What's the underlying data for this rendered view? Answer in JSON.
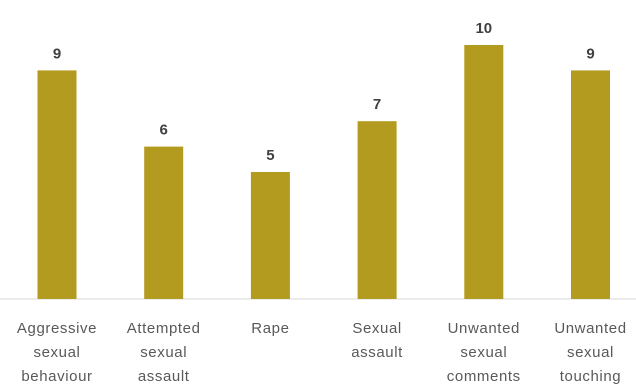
{
  "chart_data": {
    "type": "bar",
    "title": "",
    "xlabel": "",
    "ylabel": "",
    "categories": [
      [
        "Aggressive",
        "sexual",
        "behaviour"
      ],
      [
        "Attempted",
        "sexual",
        "assault"
      ],
      [
        "Rape"
      ],
      [
        "Sexual",
        "assault"
      ],
      [
        "Unwanted",
        "sexual",
        "comments"
      ],
      [
        "Unwanted",
        "sexual",
        "touching"
      ]
    ],
    "values": [
      9,
      6,
      5,
      7,
      10,
      9
    ],
    "ylim": [
      0,
      10
    ],
    "grid": false,
    "legend": "none",
    "colors": {
      "bar": "#B29B1F",
      "axis": "#D9D9D9",
      "data_label": "#404040",
      "category_label": "#595959"
    }
  }
}
